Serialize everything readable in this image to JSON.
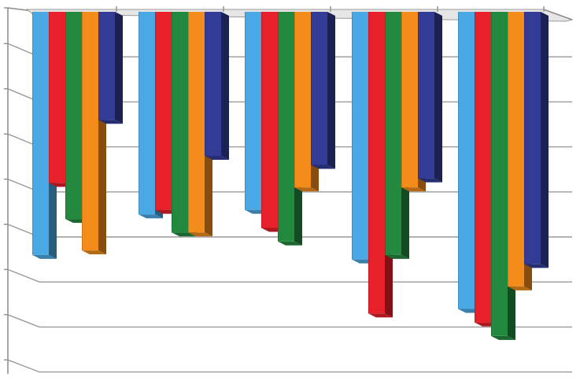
{
  "chart_data": {
    "type": "bar",
    "title": "",
    "xlabel": "",
    "ylabel": "",
    "orientation": "downward-3d-columns",
    "categories": [
      "",
      "",
      "",
      "",
      ""
    ],
    "ylim": [
      0,
      8
    ],
    "grid": true,
    "legend": "none",
    "series": [
      {
        "color": "#4aa9e4",
        "values": [
          5.4,
          4.5,
          4.4,
          5.5,
          6.6
        ]
      },
      {
        "color": "#e8202a",
        "values": [
          3.8,
          4.4,
          4.8,
          6.7,
          6.9
        ]
      },
      {
        "color": "#23893e",
        "values": [
          4.6,
          4.9,
          5.1,
          5.4,
          7.2
        ]
      },
      {
        "color": "#f38c1a",
        "values": [
          5.3,
          4.9,
          3.9,
          3.9,
          6.1
        ]
      },
      {
        "color": "#323c96",
        "values": [
          2.4,
          3.2,
          3.4,
          3.7,
          5.6
        ]
      },
      {
        "color": "#252a5e",
        "values": [
          0.0,
          0.0,
          0.0,
          0.0,
          0.0
        ]
      }
    ]
  }
}
